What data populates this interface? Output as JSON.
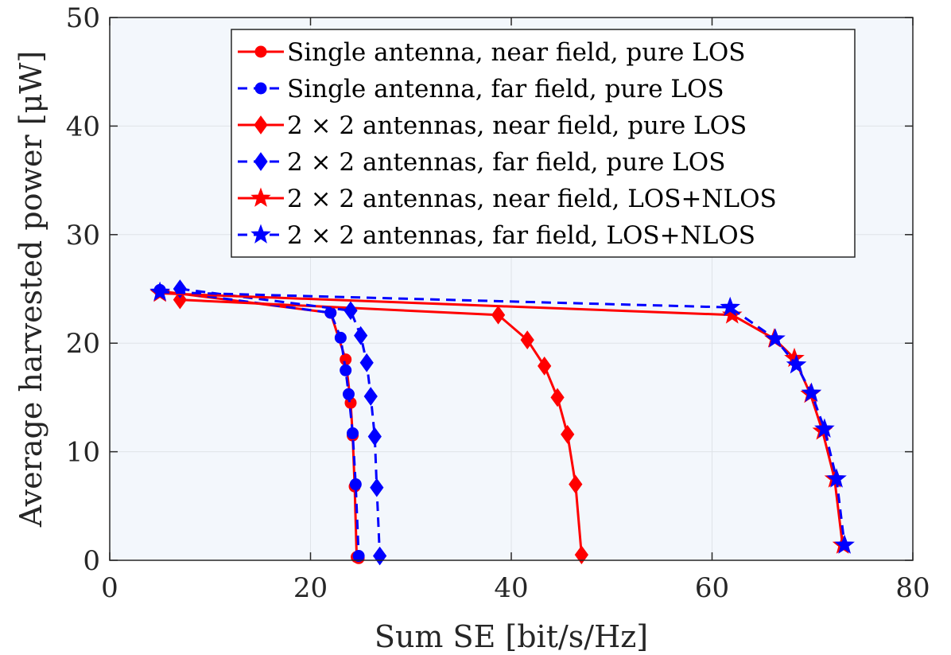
{
  "chart_data": {
    "type": "line",
    "title": "",
    "xlabel": "Sum SE [bit/s/Hz]",
    "ylabel": "Average harvested power [μW]",
    "xlim": [
      0,
      80
    ],
    "ylim": [
      0,
      50
    ],
    "xticks": [
      0,
      20,
      40,
      60,
      80
    ],
    "yticks": [
      0,
      10,
      20,
      30,
      40,
      50
    ],
    "xtick_labels": [
      "0",
      "20",
      "40",
      "60",
      "80"
    ],
    "ytick_labels": [
      "0",
      "10",
      "20",
      "30",
      "40",
      "50"
    ],
    "grid": true,
    "legend_position": "top-right",
    "background_color": "#f3f7fc",
    "series": [
      {
        "name": "Single antenna, near field, pure LOS",
        "color": "#ff0000",
        "dash": "solid",
        "marker": "circle",
        "x": [
          5,
          22,
          23.5,
          24,
          24.2,
          24.4,
          24.6,
          24.8
        ],
        "y": [
          24.8,
          22.8,
          18.5,
          14.5,
          11.5,
          6.8,
          0.3,
          0.2
        ]
      },
      {
        "name": "Single antenna, far field, pure LOS",
        "color": "#0000ff",
        "dash": "dashed",
        "marker": "circle",
        "x": [
          5,
          22,
          23,
          23.5,
          23.8,
          24.2,
          24.5,
          24.8
        ],
        "y": [
          24.9,
          22.8,
          20.5,
          17.5,
          15.3,
          11.7,
          7.0,
          0.4
        ]
      },
      {
        "name": "2 × 2 antennas, near field, pure LOS",
        "color": "#ff0000",
        "dash": "solid",
        "marker": "diamond",
        "x": [
          7,
          38.7,
          41.6,
          43.3,
          44.6,
          45.6,
          46.4,
          47
        ],
        "y": [
          24.0,
          22.6,
          20.3,
          17.9,
          15.0,
          11.6,
          7.0,
          0.5
        ]
      },
      {
        "name": "2 × 2 antennas, far field, pure LOS",
        "color": "#0000ff",
        "dash": "dashed",
        "marker": "diamond",
        "x": [
          7,
          24,
          25,
          25.6,
          26,
          26.4,
          26.6,
          26.9
        ],
        "y": [
          25.0,
          23.0,
          20.7,
          18.2,
          15.1,
          11.4,
          6.7,
          0.4
        ]
      },
      {
        "name": "2 × 2 antennas, near field, LOS+NLOS",
        "color": "#ff0000",
        "dash": "solid",
        "marker": "star",
        "x": [
          5,
          62,
          66.2,
          68.2,
          69.8,
          71,
          72.2,
          73
        ],
        "y": [
          24.6,
          22.6,
          20.4,
          18.6,
          15.3,
          11.9,
          7.5,
          1.4
        ]
      },
      {
        "name": "2 × 2 antennas, far field, LOS+NLOS",
        "color": "#0000ff",
        "dash": "dashed",
        "marker": "star",
        "x": [
          5,
          61.8,
          66.3,
          68.4,
          69.9,
          71.2,
          72.4,
          73.2
        ],
        "y": [
          24.7,
          23.3,
          20.4,
          18.0,
          15.4,
          12.1,
          7.5,
          1.4
        ]
      }
    ]
  }
}
